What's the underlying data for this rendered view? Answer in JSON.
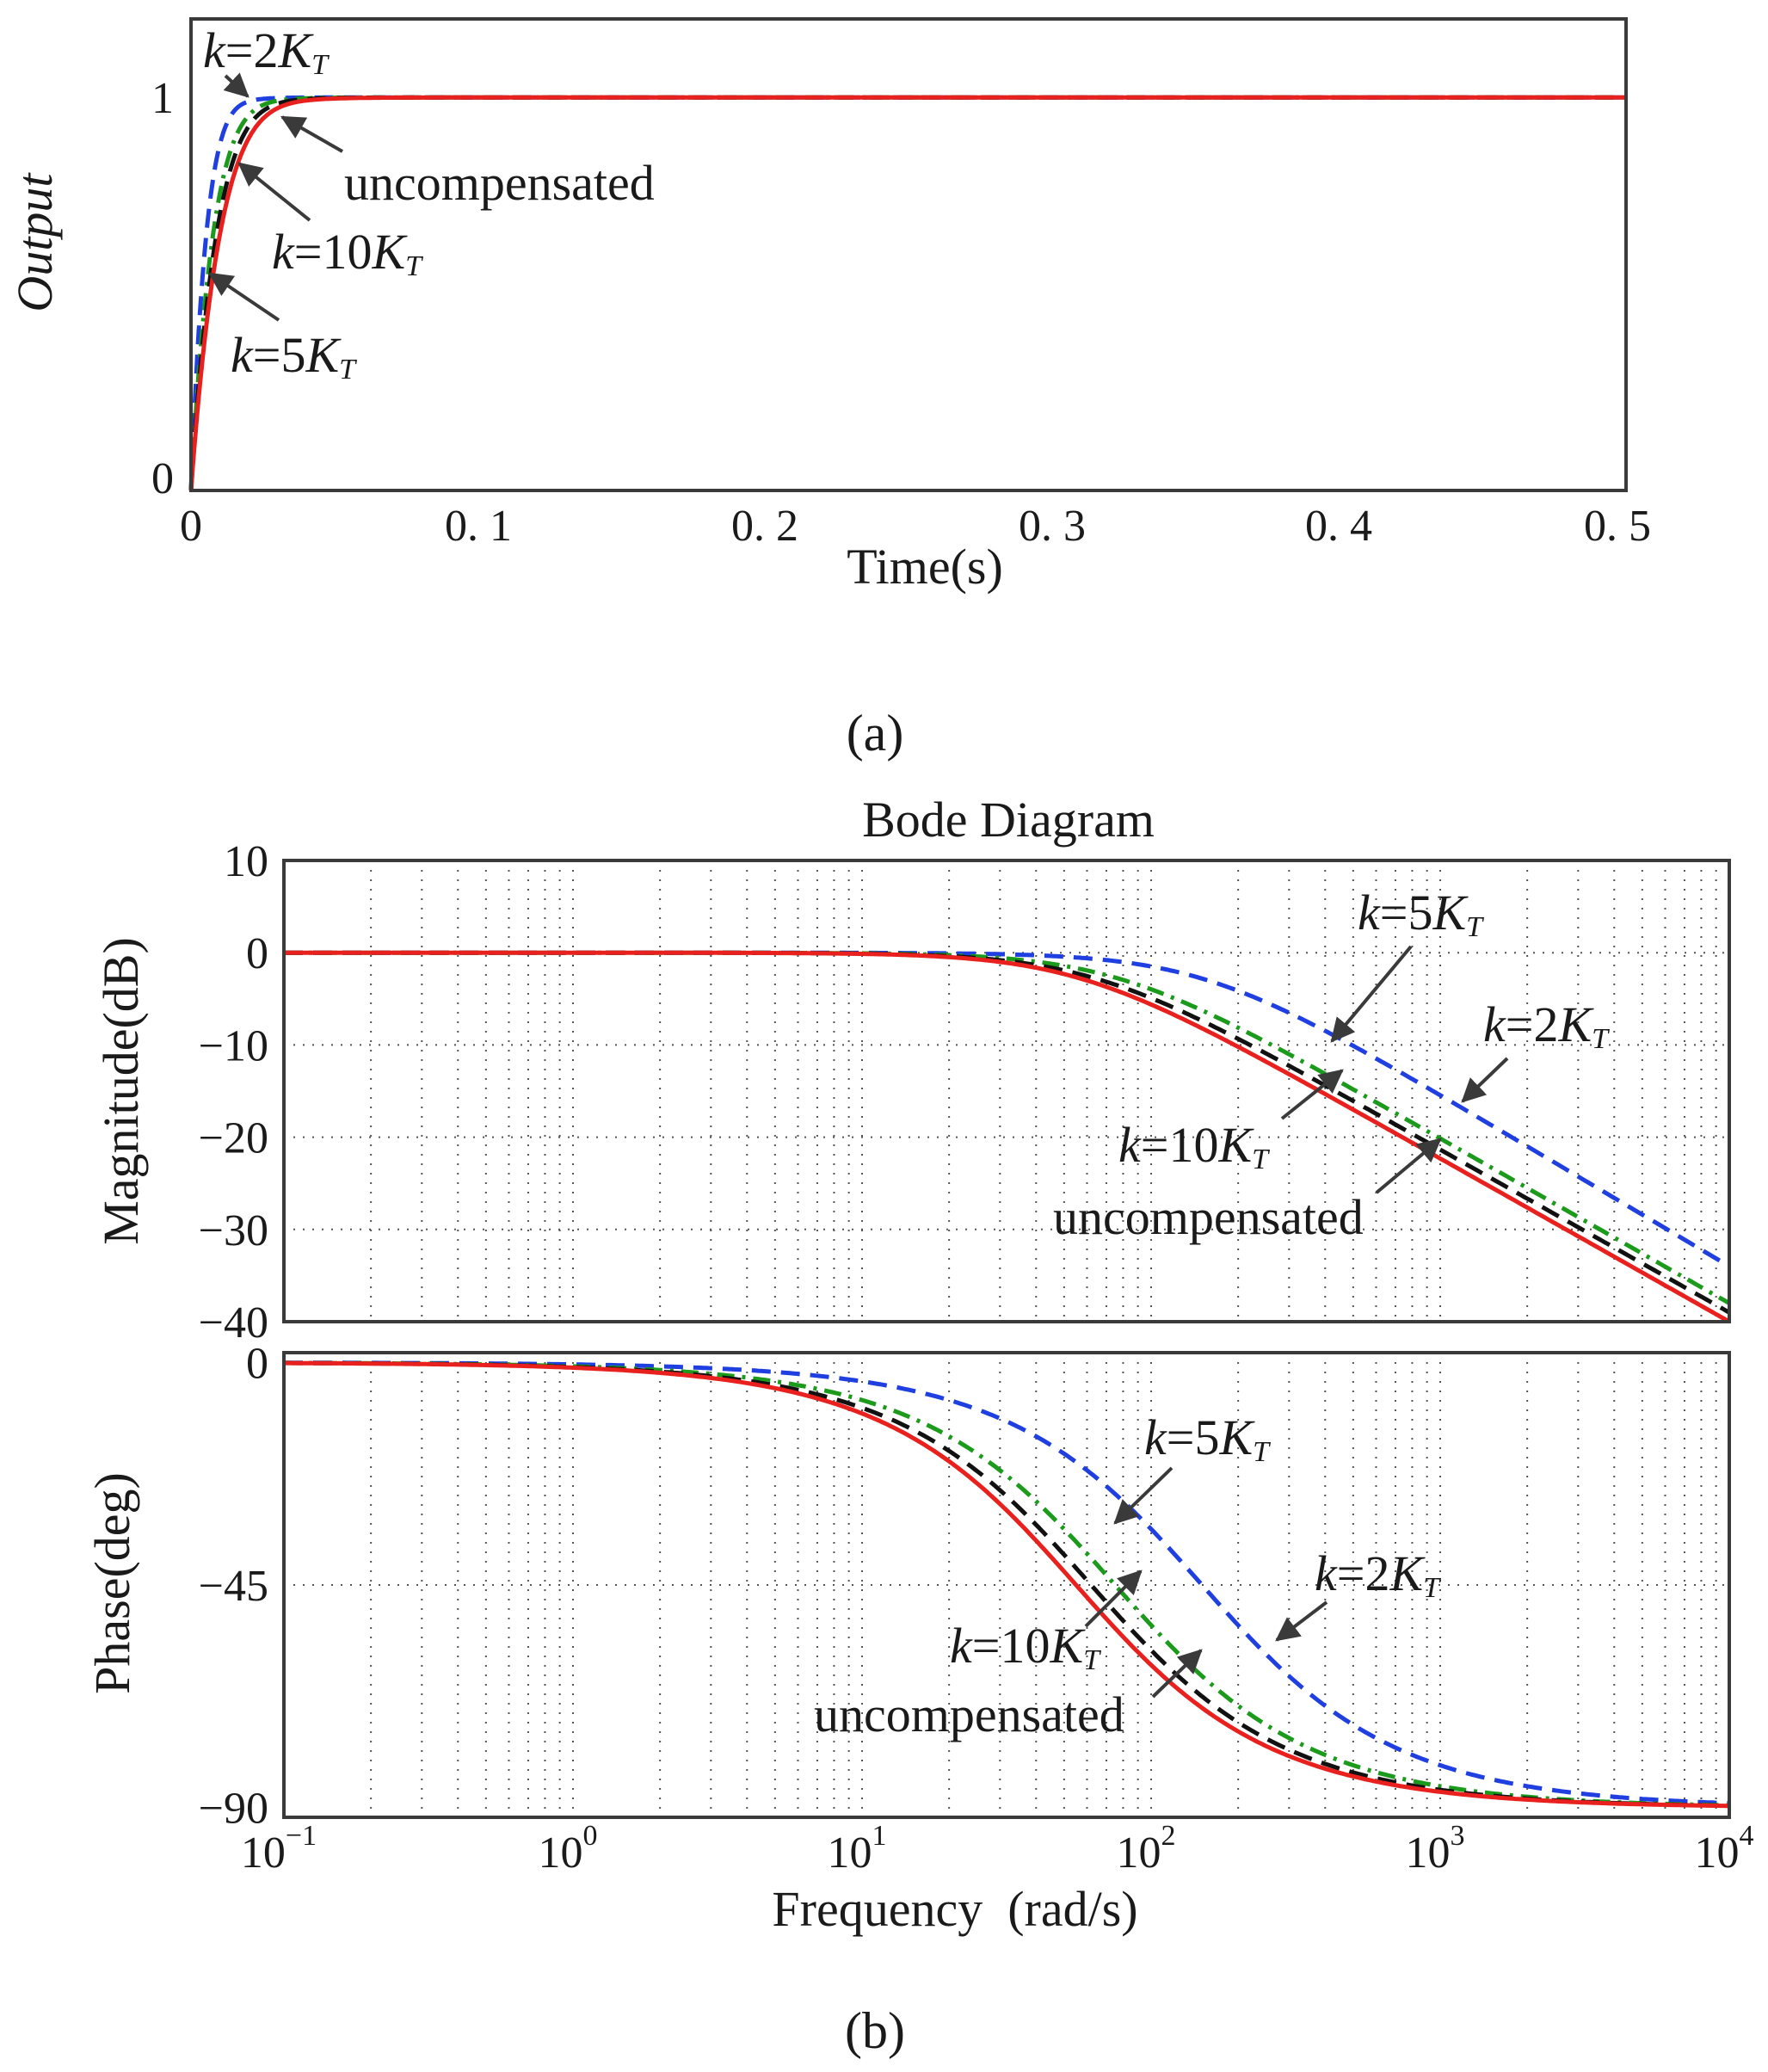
{
  "colors": {
    "uncompensated": "#e8201e",
    "k10": "#111111",
    "k5": "#1b9a1b",
    "k2": "#1f3fe0"
  },
  "panel_a": {
    "label": "(a)",
    "annotations": {
      "k2": [
        "k",
        "=2",
        "K",
        "T"
      ],
      "uncomp": "uncompensated",
      "k10": [
        "k",
        "=10",
        "K",
        "T"
      ],
      "k5": [
        "k",
        "=5",
        "K",
        "T"
      ]
    }
  },
  "panel_b": {
    "label": "(b)",
    "mag_annotations": {
      "k5": [
        "k",
        "=5",
        "K",
        "T"
      ],
      "k2": [
        "k",
        "=2",
        "K",
        "T"
      ],
      "k10": [
        "k",
        "=10",
        "K",
        "T"
      ],
      "uncomp": "uncompensated"
    },
    "phase_annotations": {
      "k5": [
        "k",
        "=5",
        "K",
        "T"
      ],
      "k2": [
        "k",
        "=2",
        "K",
        "T"
      ],
      "k10": [
        "k",
        "=10",
        "K",
        "T"
      ],
      "uncomp": "uncompensated"
    }
  },
  "chart_data": [
    {
      "type": "line",
      "title": "",
      "xlabel": "Time(s)",
      "ylabel": "Output",
      "xlim": [
        0,
        0.5
      ],
      "ylim": [
        0,
        1.2
      ],
      "xticks": [
        "0",
        "0. 1",
        "0. 2",
        "0. 3",
        "0. 4",
        "0. 5"
      ],
      "yticks": [
        "0",
        "1"
      ],
      "grid": false,
      "series": [
        {
          "name": "uncompensated",
          "style": "solid",
          "tau": 0.0085
        },
        {
          "name": "k=10KT",
          "style": "dashed",
          "tau": 0.0075
        },
        {
          "name": "k=5KT",
          "style": "dash-dot",
          "tau": 0.0065
        },
        {
          "name": "k=2KT",
          "style": "dashed",
          "tau": 0.0045
        }
      ]
    },
    {
      "type": "line",
      "title": "Bode Diagram",
      "xlabel": "Frequency  (rad/s)",
      "ylabel": "Magnitude(dB)",
      "xscale": "log",
      "xlim": [
        0.1,
        10000
      ],
      "ylim": [
        -40,
        10
      ],
      "yticks": [
        "10",
        "0",
        "−10",
        "−20",
        "−30",
        "−40"
      ],
      "grid": true,
      "series": [
        {
          "name": "uncompensated",
          "style": "solid",
          "corner_rad_s": 55,
          "high_freq_dB_at_1e4": -40
        },
        {
          "name": "k=10KT",
          "style": "dashed",
          "corner_rad_s": 62,
          "high_freq_dB_at_1e4": -39
        },
        {
          "name": "k=5KT",
          "style": "dash-dot",
          "corner_rad_s": 75,
          "high_freq_dB_at_1e4": -38
        },
        {
          "name": "k=2KT",
          "style": "dashed",
          "corner_rad_s": 150,
          "high_freq_dB_at_1e4": -34
        }
      ]
    },
    {
      "type": "line",
      "title": "",
      "xlabel": "Frequency  (rad/s)",
      "ylabel": "Phase(deg)",
      "xscale": "log",
      "xlim": [
        0.1,
        10000
      ],
      "ylim": [
        -92,
        2
      ],
      "yticks": [
        "0",
        "−45",
        "−90"
      ],
      "xticks_base": "10",
      "xticks_exp": [
        "−1",
        "0",
        "1",
        "2",
        "3",
        "4"
      ],
      "grid": true,
      "series": [
        {
          "name": "uncompensated",
          "style": "solid",
          "corner_rad_s": 55,
          "phase_deg_at_corner": -45
        },
        {
          "name": "k=10KT",
          "style": "dashed",
          "corner_rad_s": 62,
          "phase_deg_at_corner": -45
        },
        {
          "name": "k=5KT",
          "style": "dash-dot",
          "corner_rad_s": 75,
          "phase_deg_at_corner": -45
        },
        {
          "name": "k=2KT",
          "style": "dashed",
          "corner_rad_s": 150,
          "phase_deg_at_corner": -45
        }
      ]
    }
  ]
}
